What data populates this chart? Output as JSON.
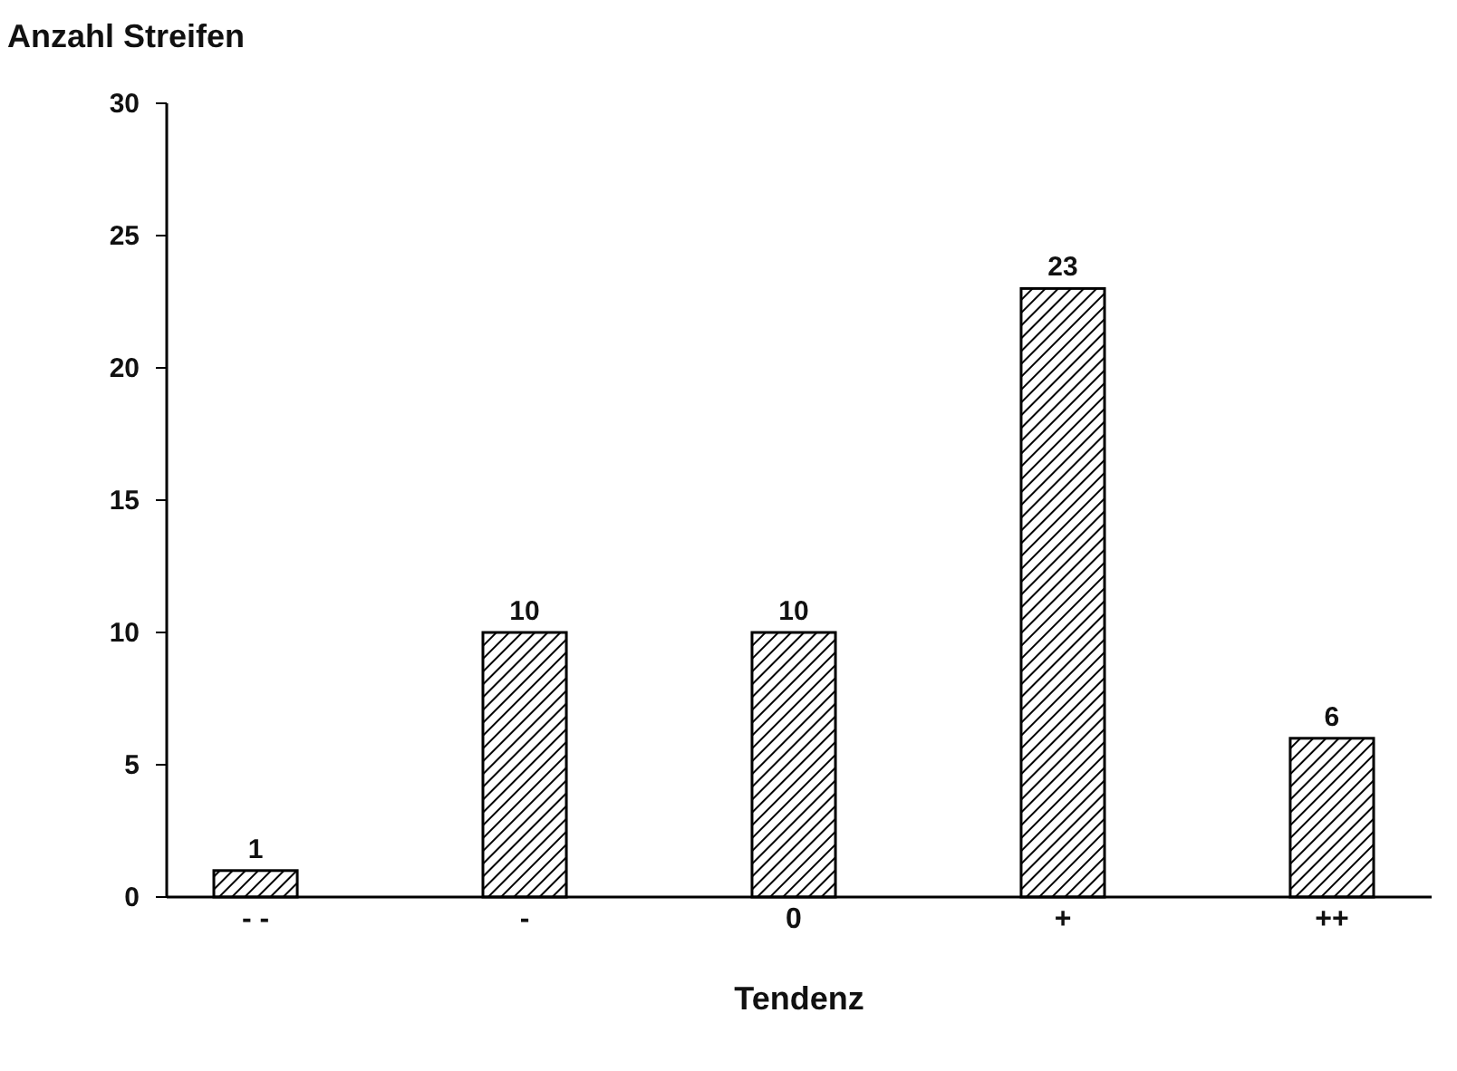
{
  "chart_data": {
    "type": "bar",
    "ylabel": "Anzahl Streifen",
    "xlabel": "Tendenz",
    "categories": [
      "- -",
      "-",
      "0",
      "+",
      "++"
    ],
    "values": [
      1,
      10,
      10,
      23,
      6
    ],
    "color": "#000000",
    "ylim": [
      0,
      30
    ],
    "yticks": [
      0,
      5,
      10,
      15,
      20,
      25,
      30
    ],
    "data_labels": true
  }
}
